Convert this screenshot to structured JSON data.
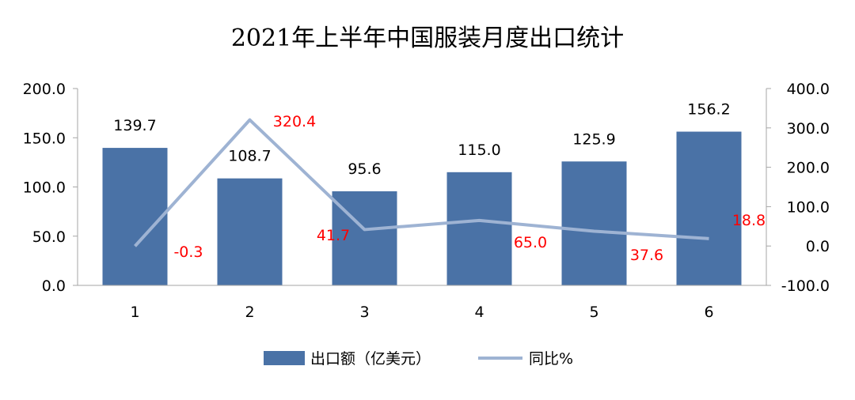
{
  "chart_data": {
    "type": "bar",
    "title": "2021年上半年中国服装月度出口统计",
    "categories": [
      "1",
      "2",
      "3",
      "4",
      "5",
      "6"
    ],
    "series": [
      {
        "name": "出口额（亿美元）",
        "type": "bar",
        "axis": "left",
        "values": [
          139.7,
          108.7,
          95.6,
          115.0,
          125.9,
          156.2
        ],
        "labels": [
          "139.7",
          "108.7",
          "95.6",
          "115.0",
          "125.9",
          "156.2"
        ],
        "color": "#4a72a6"
      },
      {
        "name": "同比%",
        "type": "line",
        "axis": "right",
        "values": [
          -0.3,
          320.4,
          41.7,
          65.0,
          37.6,
          18.8
        ],
        "labels": [
          "-0.3",
          "320.4",
          "41.7",
          "65.0",
          "37.6",
          "18.8"
        ],
        "color": "#9eb3d3",
        "label_color": "#ff0000"
      }
    ],
    "y_left": {
      "ylim": [
        0,
        200
      ],
      "ticks": [
        "0.0",
        "50.0",
        "100.0",
        "150.0",
        "200.0"
      ]
    },
    "y_right": {
      "ylim": [
        -100,
        400
      ],
      "ticks": [
        "-100.0",
        "0.0",
        "100.0",
        "200.0",
        "300.0",
        "400.0"
      ]
    },
    "grid": false,
    "legend_position": "bottom-center"
  }
}
